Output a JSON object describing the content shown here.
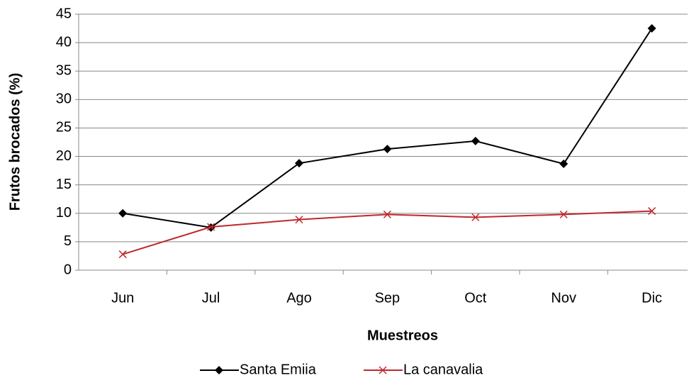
{
  "chart_data": {
    "type": "line",
    "x_label": "Muestreos",
    "y_label": "Frutos brocados (%)",
    "categories": [
      "Jun",
      "Jul",
      "Ago",
      "Sep",
      "Oct",
      "Nov",
      "Dic"
    ],
    "series": [
      {
        "name": "Santa Emiia",
        "color": "#000000",
        "marker": "diamond",
        "values": [
          10,
          7.5,
          18.8,
          21.3,
          22.7,
          18.7,
          42.5
        ]
      },
      {
        "name": "La canavalia",
        "color": "#c0282d",
        "marker": "x",
        "values": [
          2.8,
          7.6,
          8.9,
          9.8,
          9.3,
          9.8,
          10.4
        ]
      }
    ],
    "ylim": [
      0,
      45
    ],
    "yticks": [
      0,
      5,
      10,
      15,
      20,
      25,
      30,
      35,
      40,
      45
    ],
    "grid": true,
    "legend": "bottom"
  }
}
